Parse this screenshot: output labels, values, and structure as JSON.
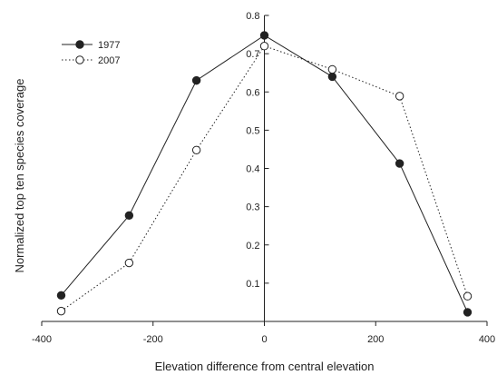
{
  "chart_data": {
    "type": "line",
    "title": "",
    "xlabel": "Elevation difference from central elevation",
    "ylabel": "Normalized top ten species coverage",
    "xlim": [
      -400,
      400
    ],
    "ylim": [
      0,
      0.8
    ],
    "x_ticks": [
      -400,
      -200,
      0,
      200,
      400
    ],
    "y_ticks": [
      0.1,
      0.2,
      0.3,
      0.4,
      0.5,
      0.6,
      0.7,
      0.8
    ],
    "x_tick_labels": [
      "-400",
      "-200",
      "0",
      "200",
      "400"
    ],
    "y_tick_labels": [
      "0.1",
      "0.2",
      "0.3",
      "0.4",
      "0.5",
      "0.6",
      "0.7",
      "0.8"
    ],
    "grid": false,
    "legend_position": "top-left",
    "series": [
      {
        "name": "1977",
        "style": "solid line, filled circle markers",
        "color": "#222222",
        "x": [
          -365,
          -243,
          -122,
          0,
          122,
          243,
          365
        ],
        "y": [
          0.068,
          0.277,
          0.63,
          0.748,
          0.64,
          0.413,
          0.024
        ]
      },
      {
        "name": "2007",
        "style": "dotted line, open circle markers",
        "color": "#222222",
        "x": [
          -365,
          -243,
          -122,
          0,
          122,
          243,
          365
        ],
        "y": [
          0.027,
          0.153,
          0.448,
          0.72,
          0.659,
          0.589,
          0.066
        ]
      }
    ]
  }
}
